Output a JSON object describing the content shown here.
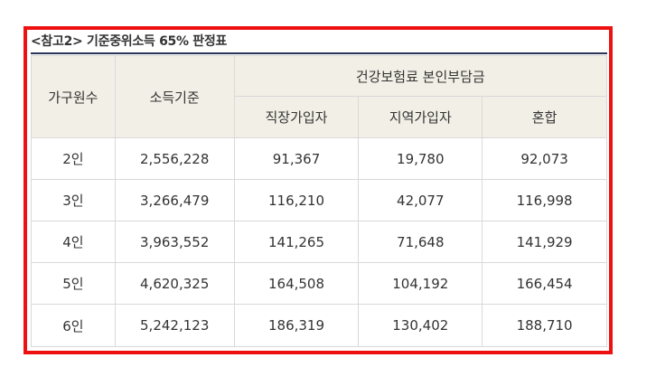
{
  "caption": "<참고2> 기준중위소득 65% 판정표",
  "headers": {
    "household": "가구원수",
    "income": "소득기준",
    "insurance_group": "건강보험료 본인부담금",
    "employee": "직장가입자",
    "regional": "지역가입자",
    "mixed": "혼합"
  },
  "rows": [
    {
      "household": "2인",
      "income": "2,556,228",
      "employee": "91,367",
      "regional": "19,780",
      "mixed": "92,073"
    },
    {
      "household": "3인",
      "income": "3,266,479",
      "employee": "116,210",
      "regional": "42,077",
      "mixed": "116,998"
    },
    {
      "household": "4인",
      "income": "3,963,552",
      "employee": "141,265",
      "regional": "71,648",
      "mixed": "141,929"
    },
    {
      "household": "5인",
      "income": "4,620,325",
      "employee": "164,508",
      "regional": "104,192",
      "mixed": "166,454"
    },
    {
      "household": "6인",
      "income": "5,242,123",
      "employee": "186,319",
      "regional": "130,402",
      "mixed": "188,710"
    }
  ],
  "colors": {
    "frame": "#ee1111",
    "header_bg": "#f2efe6",
    "caption_rule": "#2b3358"
  }
}
